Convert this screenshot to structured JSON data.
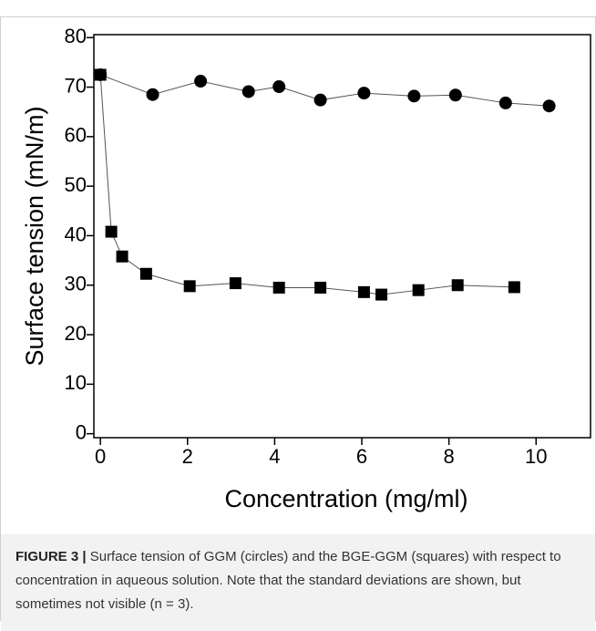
{
  "chart_data": {
    "type": "line",
    "xlabel": "Concentration (mg/ml)",
    "ylabel": "Surface tension (mN/m)",
    "series": [
      {
        "marker": "circle",
        "color": "#000000",
        "x": [
          0,
          1.2,
          2.3,
          3.4,
          4.1,
          5.05,
          6.05,
          7.2,
          8.15,
          9.3,
          10.3
        ],
        "values": [
          72.5,
          68.5,
          71.2,
          69.1,
          70.1,
          67.4,
          68.8,
          68.2,
          68.4,
          66.8,
          66.2
        ]
      },
      {
        "marker": "square",
        "color": "#000000",
        "x": [
          0,
          0.25,
          0.5,
          1.05,
          2.05,
          3.1,
          4.1,
          5.05,
          6.05,
          6.45,
          7.3,
          8.2,
          9.5
        ],
        "values": [
          72.5,
          40.8,
          35.8,
          32.3,
          29.8,
          30.4,
          29.5,
          29.5,
          28.6,
          28.1,
          29.0,
          30.0,
          29.6
        ]
      }
    ],
    "xlim": [
      -0.15,
      11.25
    ],
    "xticks": [
      0,
      2,
      4,
      6,
      8,
      10
    ],
    "ylim": [
      -0.8,
      80.6
    ],
    "yticks": [
      0,
      10,
      20,
      30,
      40,
      50,
      60,
      70,
      80
    ]
  },
  "caption": {
    "label": "FIGURE 3 |",
    "text": "Surface tension of GGM (circles) and the BGE-GGM (squares) with respect to concentration in aqueous solution. Note that the standard deviations are shown, but sometimes not visible (n = 3)."
  }
}
